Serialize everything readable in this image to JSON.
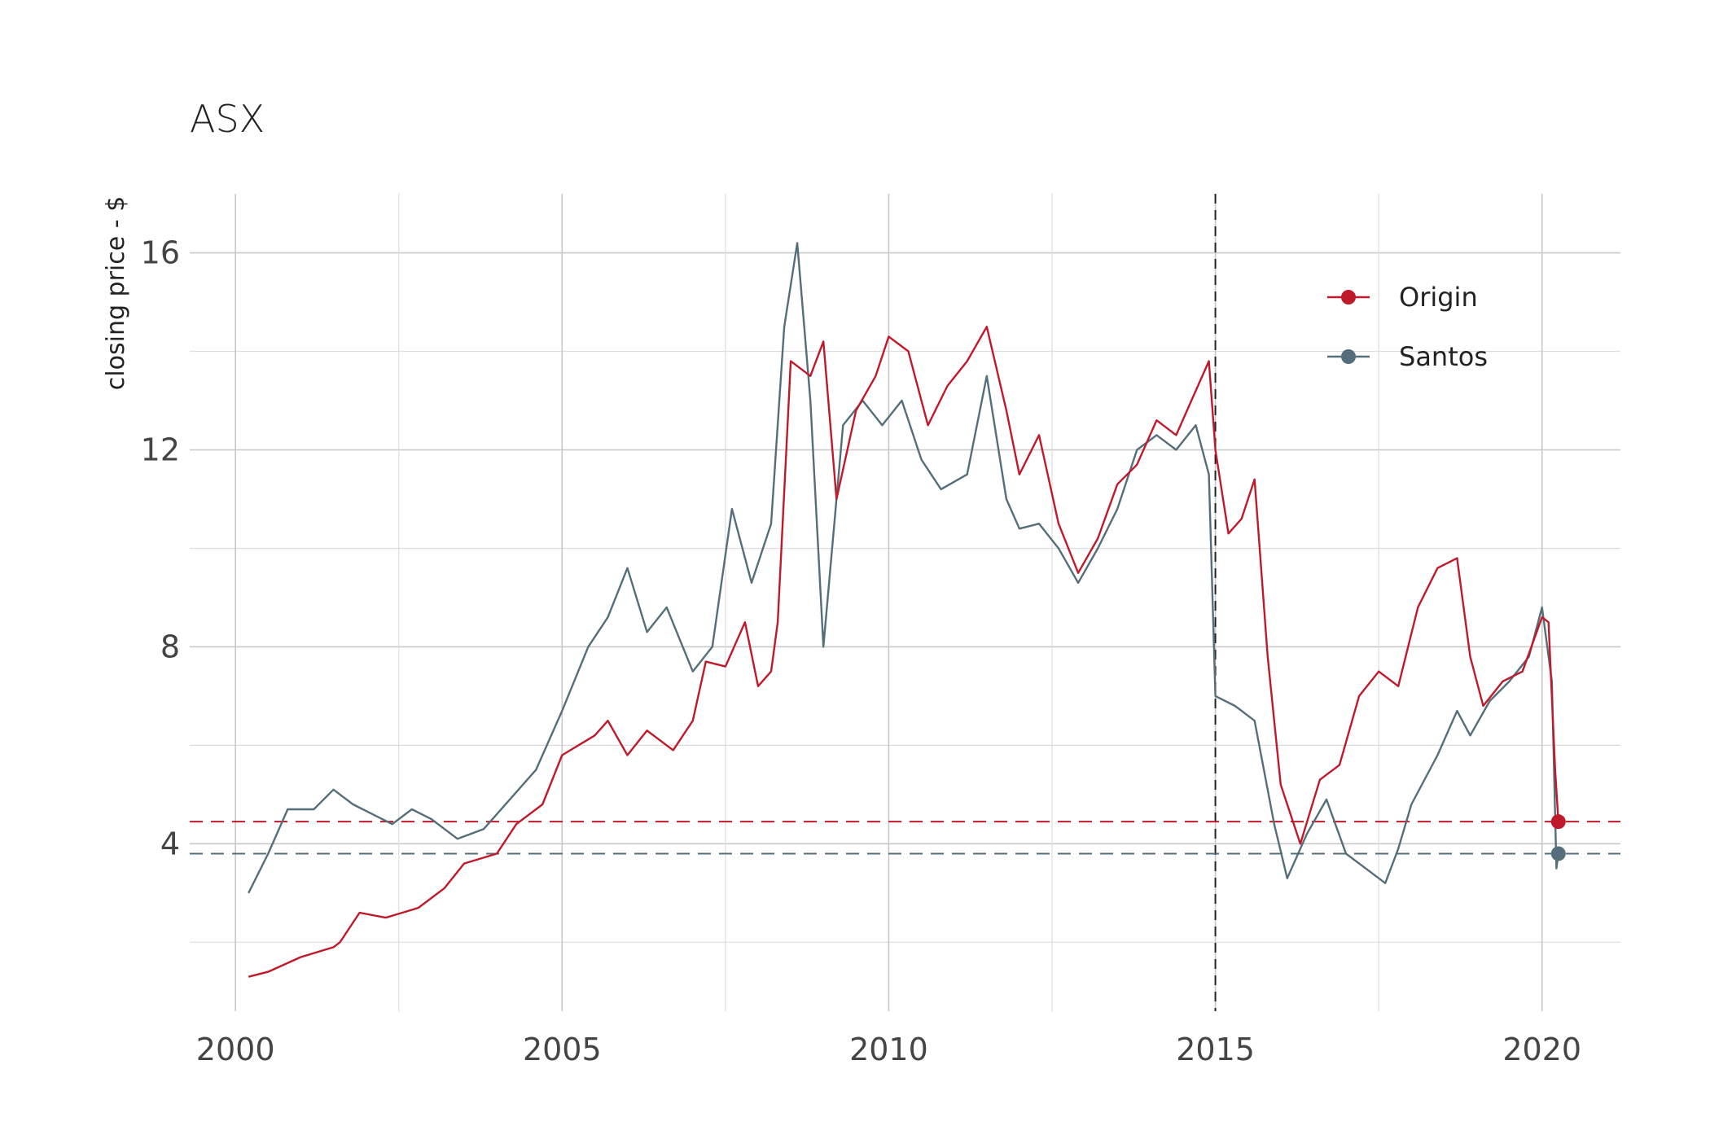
{
  "chart_data": {
    "type": "line",
    "title": "ASX",
    "xlabel": "",
    "ylabel": "closing price - $",
    "xlim": [
      1999.3,
      2021.2
    ],
    "ylim": [
      0.6,
      17.2
    ],
    "x_ticks": [
      2000,
      2005,
      2010,
      2015,
      2020
    ],
    "x_minor_ticks": [
      2002.5,
      2007.5,
      2012.5,
      2017.5
    ],
    "y_ticks": [
      4,
      8,
      12,
      16
    ],
    "y_minor_ticks": [
      2,
      6,
      10,
      14
    ],
    "grid": true,
    "legend_position": "top-right",
    "vertical_reference_line": {
      "x": 2015.0,
      "style": "dashed",
      "color": "#222222"
    },
    "series": [
      {
        "name": "Origin",
        "color": "#c0192a",
        "last_value": 4.45,
        "points": [
          [
            2000.2,
            1.3
          ],
          [
            2000.5,
            1.4
          ],
          [
            2001.0,
            1.7
          ],
          [
            2001.5,
            1.9
          ],
          [
            2001.6,
            2.0
          ],
          [
            2001.9,
            2.6
          ],
          [
            2002.3,
            2.5
          ],
          [
            2002.8,
            2.7
          ],
          [
            2003.2,
            3.1
          ],
          [
            2003.5,
            3.6
          ],
          [
            2004.0,
            3.8
          ],
          [
            2004.3,
            4.4
          ],
          [
            2004.7,
            4.8
          ],
          [
            2005.0,
            5.8
          ],
          [
            2005.5,
            6.2
          ],
          [
            2005.7,
            6.5
          ],
          [
            2006.0,
            5.8
          ],
          [
            2006.3,
            6.3
          ],
          [
            2006.7,
            5.9
          ],
          [
            2007.0,
            6.5
          ],
          [
            2007.2,
            7.7
          ],
          [
            2007.5,
            7.6
          ],
          [
            2007.8,
            8.5
          ],
          [
            2008.0,
            7.2
          ],
          [
            2008.2,
            7.5
          ],
          [
            2008.3,
            8.5
          ],
          [
            2008.5,
            13.8
          ],
          [
            2008.8,
            13.5
          ],
          [
            2009.0,
            14.2
          ],
          [
            2009.2,
            11.0
          ],
          [
            2009.5,
            12.8
          ],
          [
            2009.8,
            13.5
          ],
          [
            2010.0,
            14.3
          ],
          [
            2010.3,
            14.0
          ],
          [
            2010.6,
            12.5
          ],
          [
            2010.9,
            13.3
          ],
          [
            2011.2,
            13.8
          ],
          [
            2011.5,
            14.5
          ],
          [
            2011.8,
            12.8
          ],
          [
            2012.0,
            11.5
          ],
          [
            2012.3,
            12.3
          ],
          [
            2012.6,
            10.5
          ],
          [
            2012.9,
            9.5
          ],
          [
            2013.2,
            10.2
          ],
          [
            2013.5,
            11.3
          ],
          [
            2013.8,
            11.7
          ],
          [
            2014.1,
            12.6
          ],
          [
            2014.4,
            12.3
          ],
          [
            2014.7,
            13.2
          ],
          [
            2014.9,
            13.8
          ],
          [
            2015.0,
            12.0
          ],
          [
            2015.2,
            10.3
          ],
          [
            2015.4,
            10.6
          ],
          [
            2015.6,
            11.4
          ],
          [
            2015.8,
            7.8
          ],
          [
            2016.0,
            5.2
          ],
          [
            2016.3,
            4.0
          ],
          [
            2016.6,
            5.3
          ],
          [
            2016.9,
            5.6
          ],
          [
            2017.2,
            7.0
          ],
          [
            2017.5,
            7.5
          ],
          [
            2017.8,
            7.2
          ],
          [
            2018.1,
            8.8
          ],
          [
            2018.4,
            9.6
          ],
          [
            2018.7,
            9.8
          ],
          [
            2018.9,
            7.8
          ],
          [
            2019.1,
            6.8
          ],
          [
            2019.4,
            7.3
          ],
          [
            2019.7,
            7.5
          ],
          [
            2020.0,
            8.6
          ],
          [
            2020.1,
            8.5
          ],
          [
            2020.2,
            5.5
          ],
          [
            2020.25,
            4.45
          ]
        ]
      },
      {
        "name": "Santos",
        "color": "#546e7a",
        "last_value": 3.8,
        "points": [
          [
            2000.2,
            3.0
          ],
          [
            2000.5,
            3.8
          ],
          [
            2000.8,
            4.7
          ],
          [
            2001.2,
            4.7
          ],
          [
            2001.5,
            5.1
          ],
          [
            2001.8,
            4.8
          ],
          [
            2002.1,
            4.6
          ],
          [
            2002.4,
            4.4
          ],
          [
            2002.7,
            4.7
          ],
          [
            2003.0,
            4.5
          ],
          [
            2003.4,
            4.1
          ],
          [
            2003.8,
            4.3
          ],
          [
            2004.2,
            4.9
          ],
          [
            2004.6,
            5.5
          ],
          [
            2005.0,
            6.7
          ],
          [
            2005.4,
            8.0
          ],
          [
            2005.7,
            8.6
          ],
          [
            2006.0,
            9.6
          ],
          [
            2006.3,
            8.3
          ],
          [
            2006.6,
            8.8
          ],
          [
            2007.0,
            7.5
          ],
          [
            2007.3,
            8.0
          ],
          [
            2007.6,
            10.8
          ],
          [
            2007.9,
            9.3
          ],
          [
            2008.2,
            10.5
          ],
          [
            2008.4,
            14.5
          ],
          [
            2008.6,
            16.2
          ],
          [
            2008.8,
            13.0
          ],
          [
            2009.0,
            8.0
          ],
          [
            2009.3,
            12.5
          ],
          [
            2009.6,
            13.0
          ],
          [
            2009.9,
            12.5
          ],
          [
            2010.2,
            13.0
          ],
          [
            2010.5,
            11.8
          ],
          [
            2010.8,
            11.2
          ],
          [
            2011.2,
            11.5
          ],
          [
            2011.5,
            13.5
          ],
          [
            2011.8,
            11.0
          ],
          [
            2012.0,
            10.4
          ],
          [
            2012.3,
            10.5
          ],
          [
            2012.6,
            10.0
          ],
          [
            2012.9,
            9.3
          ],
          [
            2013.2,
            10.0
          ],
          [
            2013.5,
            10.8
          ],
          [
            2013.8,
            12.0
          ],
          [
            2014.1,
            12.3
          ],
          [
            2014.4,
            12.0
          ],
          [
            2014.7,
            12.5
          ],
          [
            2014.9,
            11.5
          ],
          [
            2015.0,
            7.0
          ],
          [
            2015.3,
            6.8
          ],
          [
            2015.6,
            6.5
          ],
          [
            2015.9,
            4.4
          ],
          [
            2016.1,
            3.3
          ],
          [
            2016.4,
            4.2
          ],
          [
            2016.7,
            4.9
          ],
          [
            2017.0,
            3.8
          ],
          [
            2017.3,
            3.5
          ],
          [
            2017.6,
            3.2
          ],
          [
            2017.8,
            3.9
          ],
          [
            2018.0,
            4.8
          ],
          [
            2018.4,
            5.8
          ],
          [
            2018.7,
            6.7
          ],
          [
            2018.9,
            6.2
          ],
          [
            2019.2,
            6.9
          ],
          [
            2019.5,
            7.3
          ],
          [
            2019.8,
            7.8
          ],
          [
            2020.0,
            8.8
          ],
          [
            2020.15,
            7.3
          ],
          [
            2020.22,
            3.5
          ],
          [
            2020.25,
            3.8
          ]
        ]
      }
    ]
  }
}
